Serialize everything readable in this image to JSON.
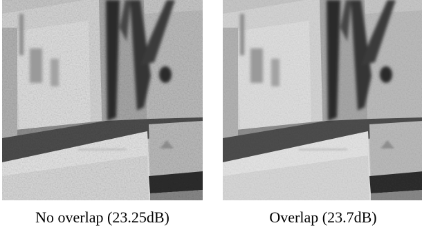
{
  "figure": {
    "panels": [
      {
        "caption": "No overlap (23.25dB)",
        "scene": "grayscale-building-and-tree-photo"
      },
      {
        "caption": "Overlap (23.7dB)",
        "scene": "grayscale-building-and-tree-photo"
      }
    ]
  }
}
